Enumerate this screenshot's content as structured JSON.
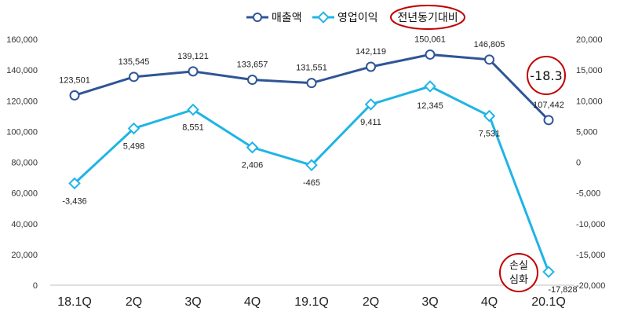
{
  "chart_data": {
    "type": "line",
    "title": "",
    "categories": [
      "18.1Q",
      "2Q",
      "3Q",
      "4Q",
      "19.1Q",
      "2Q",
      "3Q",
      "4Q",
      "20.1Q"
    ],
    "series": [
      {
        "name": "매출액",
        "axis": "left",
        "color": "#2F5597",
        "values": [
          123501,
          135545,
          139121,
          133657,
          131551,
          142119,
          150061,
          146805,
          107442
        ],
        "labels": [
          "123,501",
          "135,545",
          "139,121",
          "133,657",
          "131,551",
          "142,119",
          "150,061",
          "146,805",
          "107,442"
        ]
      },
      {
        "name": "영업이익",
        "axis": "right",
        "color": "#1FB4E6",
        "values": [
          -3436,
          5498,
          8551,
          2406,
          -465,
          9411,
          12345,
          7531,
          -17828
        ],
        "labels": [
          "-3,436",
          "5,498",
          "8,551",
          "2,406",
          "-465",
          "9,411",
          "12,345",
          "7,531",
          "-17,828"
        ]
      }
    ],
    "y_left": {
      "range": [
        0,
        160000
      ],
      "ticks": [
        "0",
        "20,000",
        "40,000",
        "60,000",
        "80,000",
        "100,000",
        "120,000",
        "140,000",
        "160,000"
      ]
    },
    "y_right": {
      "range": [
        -20000,
        20000
      ],
      "ticks": [
        "-20,000",
        "-15,000",
        "-10,000",
        "-5,000",
        "0",
        "5,000",
        "10,000",
        "15,000",
        "20,000"
      ]
    },
    "legend": {
      "position": "top-center",
      "items": [
        "매출액",
        "영업이익"
      ],
      "extra_label": "전년동기대비"
    },
    "annotations": {
      "sales_change": "-18.3",
      "loss_note_line1": "손실",
      "loss_note_line2": "심화"
    },
    "grid": false,
    "circle_color": "#C00000"
  }
}
